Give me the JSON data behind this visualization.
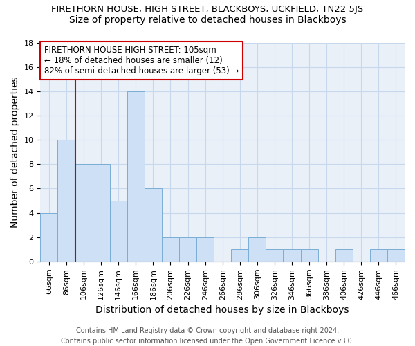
{
  "title": "FIRETHORN HOUSE, HIGH STREET, BLACKBOYS, UCKFIELD, TN22 5JS",
  "subtitle": "Size of property relative to detached houses in Blackboys",
  "xlabel": "Distribution of detached houses by size in Blackboys",
  "ylabel": "Number of detached properties",
  "categories": [
    "66sqm",
    "86sqm",
    "106sqm",
    "126sqm",
    "146sqm",
    "166sqm",
    "186sqm",
    "206sqm",
    "226sqm",
    "246sqm",
    "266sqm",
    "286sqm",
    "306sqm",
    "326sqm",
    "346sqm",
    "366sqm",
    "386sqm",
    "406sqm",
    "426sqm",
    "446sqm",
    "466sqm"
  ],
  "values": [
    4,
    10,
    8,
    8,
    5,
    14,
    6,
    2,
    2,
    2,
    0,
    1,
    2,
    1,
    1,
    1,
    0,
    1,
    0,
    1,
    1
  ],
  "bar_color": "#cde0f5",
  "bar_edge_color": "#7aaed6",
  "bar_width": 1.0,
  "ylim": [
    0,
    18
  ],
  "yticks": [
    0,
    2,
    4,
    6,
    8,
    10,
    12,
    14,
    16,
    18
  ],
  "vline_color": "#cc0000",
  "vline_x": 2.0,
  "annotation_text": "FIRETHORN HOUSE HIGH STREET: 105sqm\n← 18% of detached houses are smaller (12)\n82% of semi-detached houses are larger (53) →",
  "annotation_box_color": "#ffffff",
  "annotation_box_edge": "#cc0000",
  "footer_line1": "Contains HM Land Registry data © Crown copyright and database right 2024.",
  "footer_line2": "Contains public sector information licensed under the Open Government Licence v3.0.",
  "title_fontsize": 9.5,
  "subtitle_fontsize": 10,
  "axis_label_fontsize": 10,
  "tick_fontsize": 8,
  "annotation_fontsize": 8.5,
  "footer_fontsize": 7,
  "grid_color": "#c8d8ec",
  "background_color": "#eaf0f8"
}
